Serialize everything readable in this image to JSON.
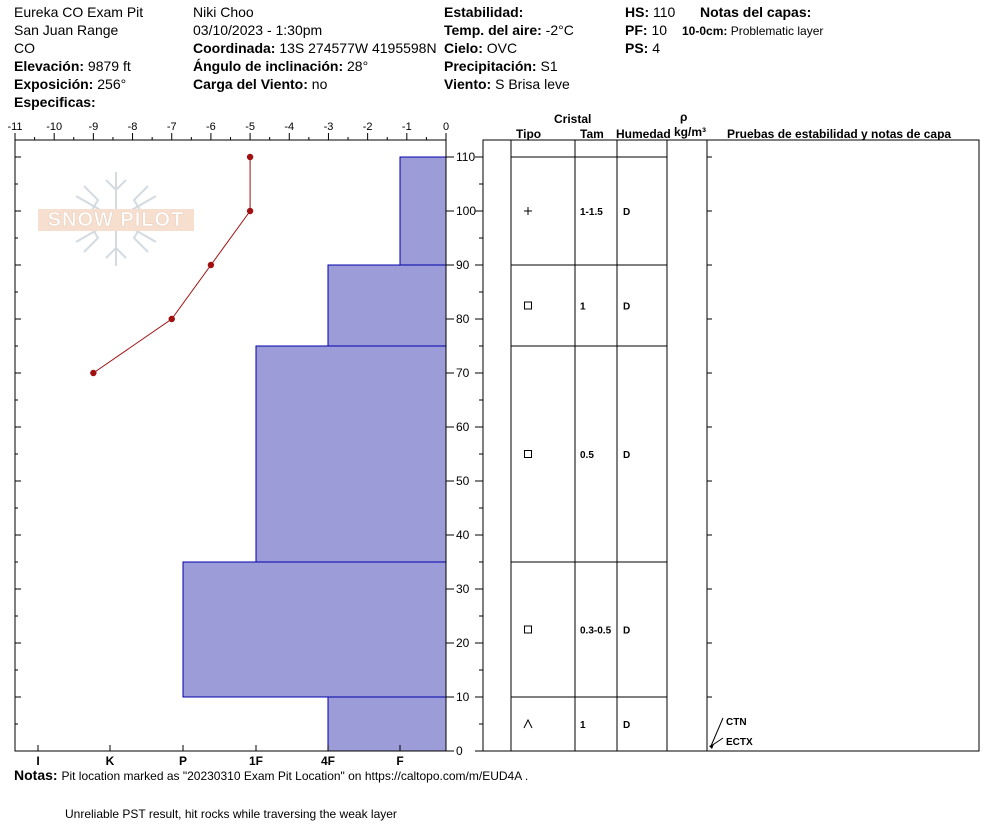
{
  "header": {
    "col1": {
      "pit_name": "Eureka CO Exam Pit",
      "range": "San Juan Range",
      "state": "CO",
      "elevation_label": "Elevación:",
      "elevation_value": "9879 ft",
      "aspect_label": "Exposición:",
      "aspect_value": "256°",
      "specifics_label": "Especificas:"
    },
    "col2": {
      "observer": "Niki Choo",
      "datetime": "03/10/2023 - 1:30pm",
      "coord_label": "Coordinada:",
      "coord_value": "13S 274577W 4195598N",
      "slope_label": "Ángulo de inclinación:",
      "slope_value": "28°",
      "wind_load_label": "Carga del Viento:",
      "wind_load_value": "no"
    },
    "col3": {
      "stability_label": "Estabilidad:",
      "air_temp_label": "Temp. del aire:",
      "air_temp_value": "-2°C",
      "sky_label": "Cielo:",
      "sky_value": "OVC",
      "precip_label": "Precipitación:",
      "precip_value": "S1",
      "wind_label": "Viento:",
      "wind_value": "S Brisa leve"
    },
    "col4": {
      "hs_label": "HS:",
      "hs_value": "110",
      "pf_label": "PF:",
      "pf_value": "10",
      "ps_label": "PS:",
      "ps_value": "4"
    },
    "layer_notes": {
      "title": "Notas del capas:",
      "depth": "10-0cm:",
      "text": "Problematic layer"
    }
  },
  "table_headers": {
    "cristal": "Cristal",
    "tipo": "Tipo",
    "tam": "Tam",
    "humedad": "Humedad",
    "rho": "ρ",
    "density_unit": "kg/m³",
    "tests": "Pruebas de estabilidad y notas de capa"
  },
  "layers": [
    {
      "top": 110,
      "bottom": 90,
      "hardness": "F",
      "grain_symbol": "+",
      "size": "1-1.5",
      "moisture": "D"
    },
    {
      "top": 90,
      "bottom": 75,
      "hardness": "4F",
      "grain_symbol": "□",
      "size": "1",
      "moisture": "D"
    },
    {
      "top": 75,
      "bottom": 35,
      "hardness": "1F",
      "grain_symbol": "□",
      "size": "0.5",
      "moisture": "D"
    },
    {
      "top": 35,
      "bottom": 10,
      "hardness": "P",
      "grain_symbol": "□",
      "size": "0.3-0.5",
      "moisture": "D"
    },
    {
      "top": 10,
      "bottom": 0,
      "hardness": "4F",
      "grain_symbol": "^",
      "size": "1",
      "moisture": "D"
    }
  ],
  "tests": [
    {
      "label": "CTN"
    },
    {
      "label": "ECTX"
    }
  ],
  "chart_data": {
    "type": "area",
    "temp_axis": {
      "ticks": [
        -11,
        -10,
        -9,
        -8,
        -7,
        -6,
        -5,
        -4,
        -3,
        -2,
        -1,
        0
      ],
      "range": [
        -11,
        0
      ]
    },
    "depth_axis": {
      "ticks": [
        0,
        10,
        20,
        30,
        40,
        50,
        60,
        70,
        80,
        90,
        100,
        110
      ],
      "range": [
        0,
        110
      ]
    },
    "hardness_axis": {
      "labels": [
        "I",
        "K",
        "P",
        "1F",
        "4F",
        "F"
      ]
    },
    "temperature_profile": [
      {
        "depth": 110,
        "temp": -5
      },
      {
        "depth": 100,
        "temp": -5
      },
      {
        "depth": 90,
        "temp": -6
      },
      {
        "depth": 80,
        "temp": -7
      },
      {
        "depth": 70,
        "temp": -9
      }
    ],
    "colors": {
      "hardness_fill": "#9c9cd8",
      "hardness_stroke": "#0000aa",
      "temp_line": "#a01010"
    }
  },
  "logo": {
    "text": "SNOW PILOT"
  },
  "notes": {
    "label": "Notas:",
    "line1": "Pit location marked as \"20230310 Exam Pit Location\" on https://caltopo.com/m/EUD4A .",
    "line2": "Unreliable PST result, hit rocks while traversing the weak layer"
  }
}
